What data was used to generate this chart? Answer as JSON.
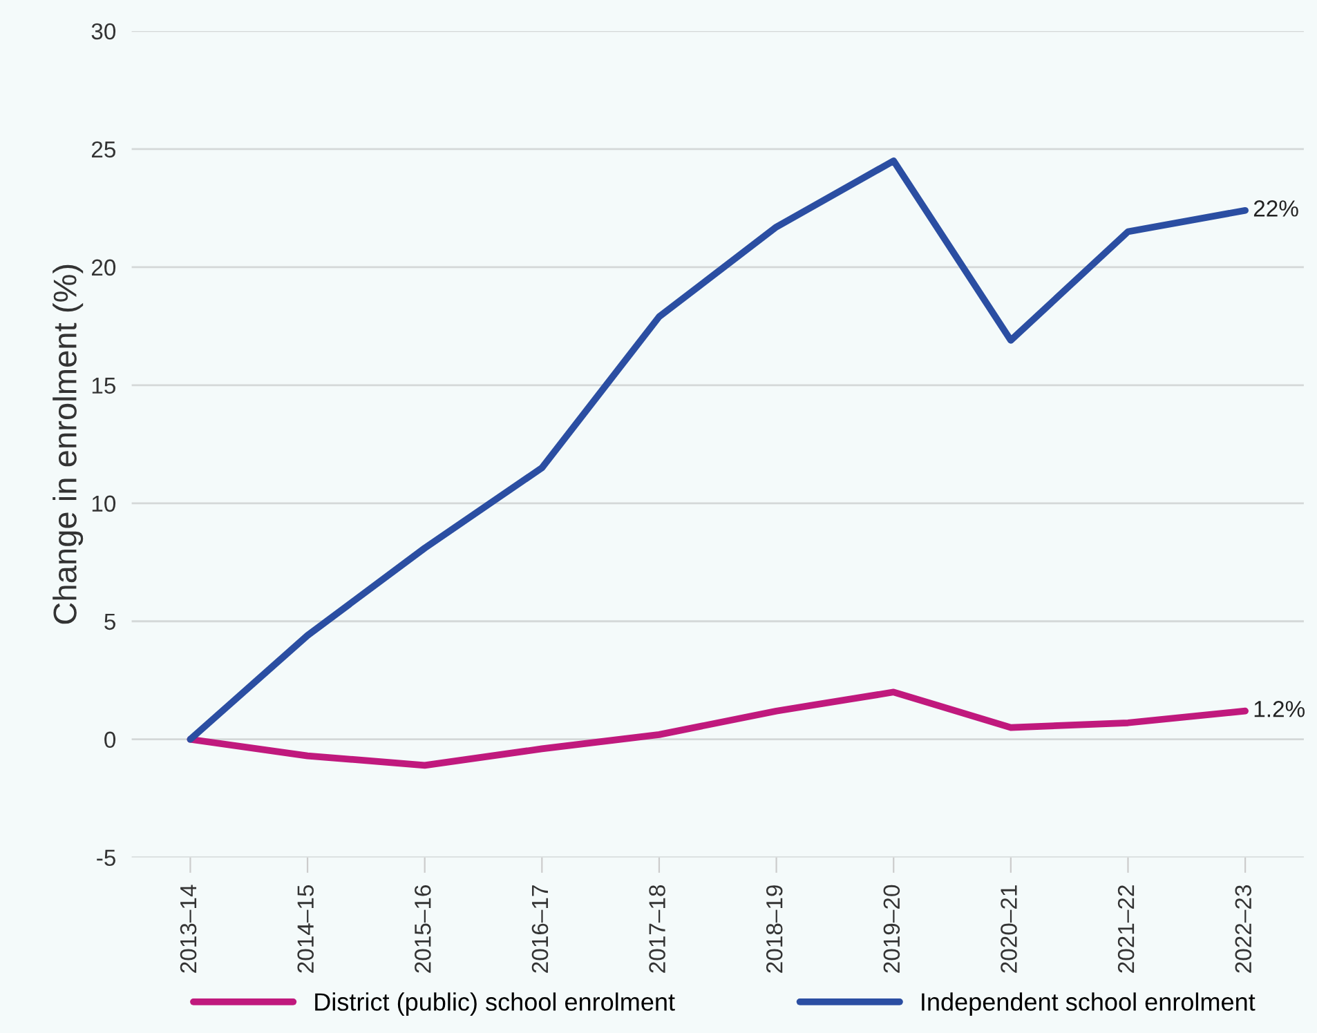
{
  "chart_data": {
    "type": "line",
    "ylabel": "Change in enrolment (%)",
    "categories": [
      "2013–14",
      "2014–15",
      "2015–16",
      "2016–17",
      "2017–18",
      "2018–19",
      "2019–20",
      "2020–21",
      "2021–22",
      "2022–23"
    ],
    "series": [
      {
        "name": "District (public) school enrolment",
        "color": "#c0197d",
        "values": [
          0,
          -0.7,
          -1.1,
          -0.4,
          0.2,
          1.2,
          2.0,
          0.5,
          0.7,
          1.2
        ]
      },
      {
        "name": "Independent school enrolment",
        "color": "#2b4ea2",
        "values": [
          0,
          4.4,
          8.1,
          11.5,
          17.9,
          21.7,
          24.5,
          16.9,
          21.5,
          22.4
        ]
      }
    ],
    "annotations": [
      {
        "text": "1.2%",
        "x": "2022–23",
        "y": 1.2
      },
      {
        "text": "22%",
        "x": "2022–23",
        "y": 22.4
      }
    ],
    "ylim": [
      -5,
      30
    ],
    "yticks": [
      -5,
      0,
      5,
      10,
      15,
      20,
      25,
      30
    ],
    "grid": "y",
    "legend": "bottom",
    "line_style": "solid",
    "marker": "none"
  }
}
